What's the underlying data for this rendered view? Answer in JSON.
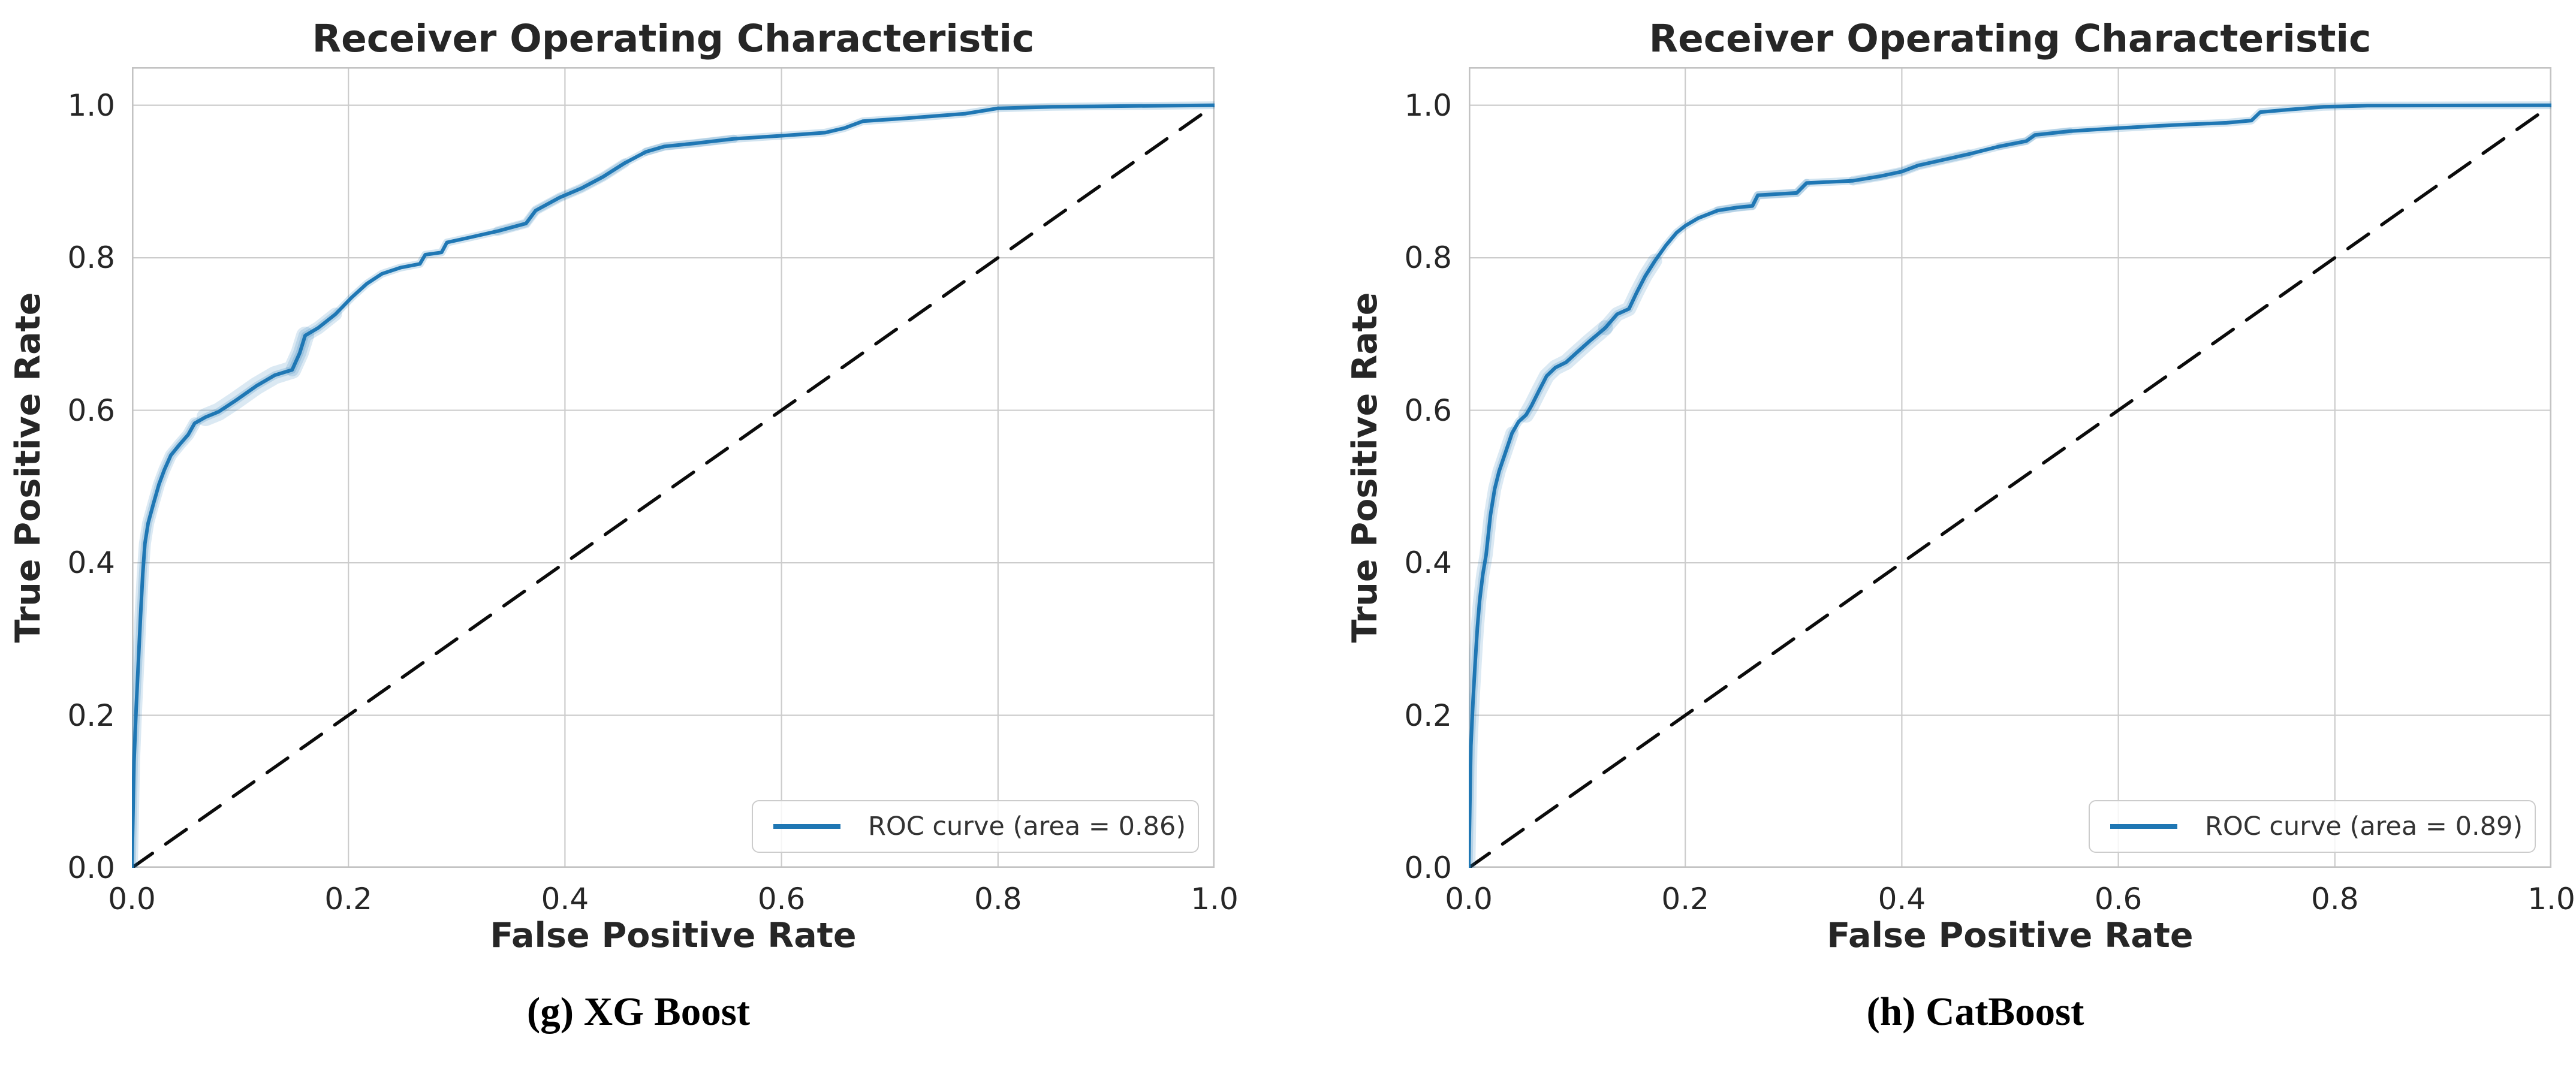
{
  "figure": {
    "background": "#ffffff",
    "text_color": "#262626",
    "grid_color": "#cccccc",
    "spine_color": "#c3c3c3",
    "roc_color": "#1f77b4",
    "band_color_rgb": "31,119,180",
    "diagonal_color": "#0b0b0b"
  },
  "chart_data": [
    {
      "type": "line",
      "panel": "g",
      "title": "Receiver Operating Characteristic",
      "xlabel": "False Positive Rate",
      "ylabel": "True Positive Rate",
      "caption": "(g) XG Boost",
      "legend_label": "ROC curve (area = 0.86)",
      "legend_position": "lower right",
      "auc": 0.86,
      "xlim": [
        0.0,
        1.0
      ],
      "ylim": [
        0.0,
        1.05
      ],
      "grid": true,
      "xticks": [
        0.0,
        0.2,
        0.4,
        0.6,
        0.8,
        1.0
      ],
      "yticks": [
        0.0,
        0.2,
        0.4,
        0.6,
        0.8,
        1.0
      ],
      "xtick_labels": [
        "0.0",
        "0.2",
        "0.4",
        "0.6",
        "0.8",
        "1.0"
      ],
      "ytick_labels": [
        "0.0",
        "0.2",
        "0.4",
        "0.6",
        "0.8",
        "1.0"
      ],
      "diagonal_points": [
        [
          0,
          0
        ],
        [
          1,
          1
        ]
      ],
      "roc_points": [
        [
          0,
          0
        ],
        [
          0.001,
          0.07
        ],
        [
          0.002,
          0.14
        ],
        [
          0.004,
          0.21
        ],
        [
          0.006,
          0.27
        ],
        [
          0.008,
          0.33
        ],
        [
          0.01,
          0.385
        ],
        [
          0.012,
          0.425
        ],
        [
          0.015,
          0.452
        ],
        [
          0.02,
          0.478
        ],
        [
          0.025,
          0.503
        ],
        [
          0.03,
          0.522
        ],
        [
          0.036,
          0.541
        ],
        [
          0.044,
          0.555
        ],
        [
          0.052,
          0.568
        ],
        [
          0.058,
          0.583
        ],
        [
          0.068,
          0.591
        ],
        [
          0.08,
          0.598
        ],
        [
          0.095,
          0.612
        ],
        [
          0.115,
          0.632
        ],
        [
          0.132,
          0.646
        ],
        [
          0.148,
          0.653
        ],
        [
          0.155,
          0.675
        ],
        [
          0.16,
          0.698
        ],
        [
          0.172,
          0.708
        ],
        [
          0.188,
          0.726
        ],
        [
          0.203,
          0.748
        ],
        [
          0.217,
          0.766
        ],
        [
          0.231,
          0.779
        ],
        [
          0.248,
          0.787
        ],
        [
          0.266,
          0.792
        ],
        [
          0.271,
          0.804
        ],
        [
          0.286,
          0.807
        ],
        [
          0.291,
          0.82
        ],
        [
          0.31,
          0.826
        ],
        [
          0.338,
          0.835
        ],
        [
          0.364,
          0.845
        ],
        [
          0.373,
          0.862
        ],
        [
          0.395,
          0.879
        ],
        [
          0.415,
          0.891
        ],
        [
          0.435,
          0.906
        ],
        [
          0.455,
          0.924
        ],
        [
          0.475,
          0.939
        ],
        [
          0.492,
          0.946
        ],
        [
          0.52,
          0.95
        ],
        [
          0.556,
          0.956
        ],
        [
          0.6,
          0.96
        ],
        [
          0.64,
          0.964
        ],
        [
          0.658,
          0.97
        ],
        [
          0.675,
          0.979
        ],
        [
          0.716,
          0.983
        ],
        [
          0.77,
          0.989
        ],
        [
          0.8,
          0.996
        ],
        [
          0.85,
          0.998
        ],
        [
          0.92,
          0.999
        ],
        [
          1.0,
          1.0
        ]
      ],
      "band_highlights": [
        {
          "from": 0.012,
          "to": 0.055,
          "width": 20
        },
        {
          "from": 0.07,
          "to": 0.155,
          "width": 30
        },
        {
          "from": 0.145,
          "to": 0.178,
          "width": 22
        },
        {
          "from": 0.35,
          "to": 0.46,
          "width": 16
        },
        {
          "from": 0.48,
          "to": 0.56,
          "width": 14
        }
      ]
    },
    {
      "type": "line",
      "panel": "h",
      "title": "Receiver Operating Characteristic",
      "xlabel": "False Positive Rate",
      "ylabel": "True Positive Rate",
      "caption": "(h) CatBoost",
      "legend_label": "ROC curve (area = 0.89)",
      "legend_position": "lower right",
      "auc": 0.89,
      "xlim": [
        0.0,
        1.0
      ],
      "ylim": [
        0.0,
        1.05
      ],
      "grid": true,
      "xticks": [
        0.0,
        0.2,
        0.4,
        0.6,
        0.8,
        1.0
      ],
      "yticks": [
        0.0,
        0.2,
        0.4,
        0.6,
        0.8,
        1.0
      ],
      "xtick_labels": [
        "0.0",
        "0.2",
        "0.4",
        "0.6",
        "0.8",
        "1.0"
      ],
      "ytick_labels": [
        "0.0",
        "0.2",
        "0.4",
        "0.6",
        "0.8",
        "1.0"
      ],
      "diagonal_points": [
        [
          0,
          0
        ],
        [
          1,
          1
        ]
      ],
      "roc_points": [
        [
          0,
          0
        ],
        [
          0.001,
          0.08
        ],
        [
          0.002,
          0.16
        ],
        [
          0.004,
          0.22
        ],
        [
          0.006,
          0.27
        ],
        [
          0.008,
          0.315
        ],
        [
          0.01,
          0.35
        ],
        [
          0.013,
          0.385
        ],
        [
          0.016,
          0.41
        ],
        [
          0.02,
          0.462
        ],
        [
          0.024,
          0.497
        ],
        [
          0.028,
          0.52
        ],
        [
          0.034,
          0.545
        ],
        [
          0.04,
          0.57
        ],
        [
          0.046,
          0.585
        ],
        [
          0.053,
          0.594
        ],
        [
          0.058,
          0.606
        ],
        [
          0.065,
          0.626
        ],
        [
          0.072,
          0.645
        ],
        [
          0.08,
          0.656
        ],
        [
          0.09,
          0.663
        ],
        [
          0.1,
          0.676
        ],
        [
          0.111,
          0.69
        ],
        [
          0.126,
          0.708
        ],
        [
          0.137,
          0.726
        ],
        [
          0.148,
          0.733
        ],
        [
          0.155,
          0.754
        ],
        [
          0.163,
          0.776
        ],
        [
          0.172,
          0.796
        ],
        [
          0.182,
          0.816
        ],
        [
          0.192,
          0.833
        ],
        [
          0.2,
          0.842
        ],
        [
          0.212,
          0.852
        ],
        [
          0.23,
          0.862
        ],
        [
          0.248,
          0.866
        ],
        [
          0.262,
          0.868
        ],
        [
          0.267,
          0.882
        ],
        [
          0.303,
          0.885
        ],
        [
          0.312,
          0.898
        ],
        [
          0.355,
          0.901
        ],
        [
          0.38,
          0.907
        ],
        [
          0.4,
          0.913
        ],
        [
          0.415,
          0.921
        ],
        [
          0.44,
          0.929
        ],
        [
          0.462,
          0.936
        ],
        [
          0.49,
          0.946
        ],
        [
          0.515,
          0.953
        ],
        [
          0.523,
          0.961
        ],
        [
          0.555,
          0.966
        ],
        [
          0.6,
          0.97
        ],
        [
          0.65,
          0.974
        ],
        [
          0.7,
          0.977
        ],
        [
          0.723,
          0.98
        ],
        [
          0.731,
          0.991
        ],
        [
          0.755,
          0.994
        ],
        [
          0.79,
          0.998
        ],
        [
          0.83,
          0.9995
        ],
        [
          1.0,
          1.0
        ]
      ],
      "band_highlights": [
        {
          "from": 0.003,
          "to": 0.03,
          "width": 22
        },
        {
          "from": 0.06,
          "to": 0.115,
          "width": 26
        },
        {
          "from": 0.125,
          "to": 0.165,
          "width": 24
        },
        {
          "from": 0.23,
          "to": 0.3,
          "width": 14
        },
        {
          "from": 0.33,
          "to": 0.47,
          "width": 16
        },
        {
          "from": 0.5,
          "to": 0.56,
          "width": 12
        }
      ]
    }
  ]
}
